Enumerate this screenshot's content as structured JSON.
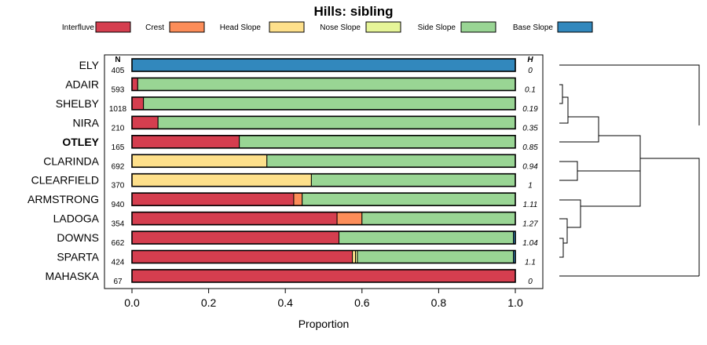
{
  "chart_data": {
    "type": "bar",
    "orientation": "horizontal",
    "stacked": true,
    "title": "Hills: sibling",
    "xlabel": "Proportion",
    "ylabel": "",
    "xlim": [
      0,
      1
    ],
    "x_ticks": [
      "0.0",
      "0.2",
      "0.4",
      "0.6",
      "0.8",
      "1.0"
    ],
    "n_header": "N",
    "h_header": "H",
    "highlight": "OTLEY",
    "legend": [
      {
        "name": "Interfluve",
        "color": "#D53E4F"
      },
      {
        "name": "Crest",
        "color": "#FC8D59"
      },
      {
        "name": "Head Slope",
        "color": "#FEE08B"
      },
      {
        "name": "Nose Slope",
        "color": "#E6F598"
      },
      {
        "name": "Side Slope",
        "color": "#99D594"
      },
      {
        "name": "Base Slope",
        "color": "#3288BD"
      }
    ],
    "rows": [
      {
        "label": "ELY",
        "n": "405",
        "h": "0",
        "segments": [
          0,
          0,
          0,
          0,
          0,
          1.0
        ]
      },
      {
        "label": "ADAIR",
        "n": "593",
        "h": "0.1",
        "segments": [
          0.015,
          0,
          0,
          0,
          0.985,
          0
        ]
      },
      {
        "label": "SHELBY",
        "n": "1018",
        "h": "0.19",
        "segments": [
          0.03,
          0,
          0,
          0,
          0.97,
          0
        ]
      },
      {
        "label": "NIRA",
        "n": "210",
        "h": "0.35",
        "segments": [
          0.068,
          0,
          0,
          0,
          0.932,
          0
        ]
      },
      {
        "label": "OTLEY",
        "n": "165",
        "h": "0.85",
        "segments": [
          0.28,
          0,
          0,
          0,
          0.72,
          0
        ]
      },
      {
        "label": "CLARINDA",
        "n": "692",
        "h": "0.94",
        "segments": [
          0,
          0,
          0.352,
          0,
          0.648,
          0
        ]
      },
      {
        "label": "CLEARFIELD",
        "n": "370",
        "h": "1",
        "segments": [
          0,
          0,
          0.468,
          0,
          0.532,
          0
        ]
      },
      {
        "label": "ARMSTRONG",
        "n": "940",
        "h": "1.11",
        "segments": [
          0.422,
          0.022,
          0,
          0,
          0.556,
          0
        ]
      },
      {
        "label": "LADOGA",
        "n": "354",
        "h": "1.27",
        "segments": [
          0.535,
          0.065,
          0,
          0,
          0.4,
          0
        ]
      },
      {
        "label": "DOWNS",
        "n": "662",
        "h": "1.04",
        "segments": [
          0.54,
          0,
          0,
          0,
          0.455,
          0.005
        ]
      },
      {
        "label": "SPARTA",
        "n": "424",
        "h": "1.1",
        "segments": [
          0.575,
          0,
          0.008,
          0.005,
          0.407,
          0.005
        ]
      },
      {
        "label": "MAHASKA",
        "n": "67",
        "h": "0",
        "segments": [
          1.0,
          0,
          0,
          0,
          0,
          0
        ]
      }
    ]
  }
}
